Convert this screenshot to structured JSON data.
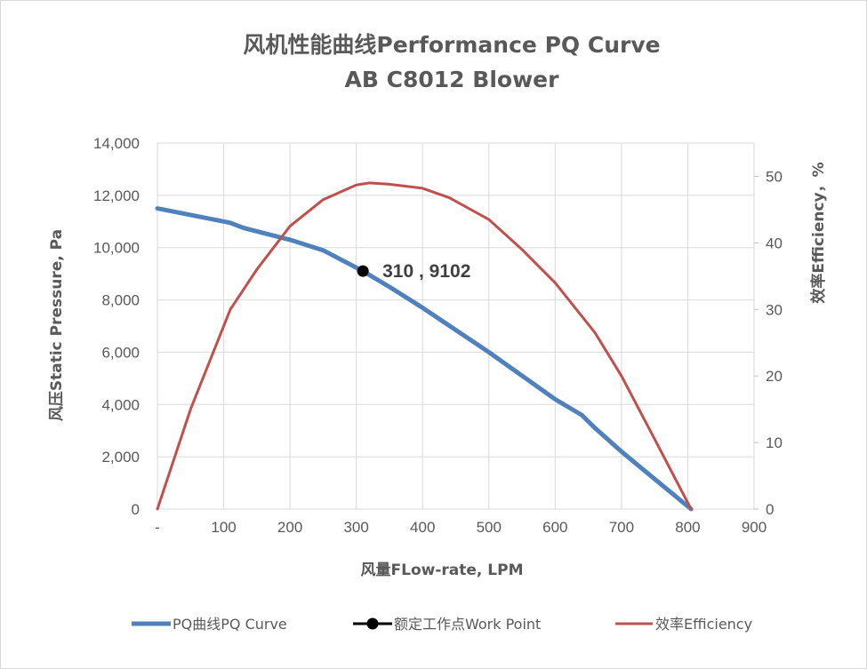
{
  "chart_data": {
    "type": "line",
    "title": "风机性能曲线Performance PQ Curve",
    "subtitle": "AB C8012 Blower",
    "xlabel": "风量FLow-rate, LPM",
    "ylabel": "风压Static Pressure, Pa",
    "y2label": "效率Efficiency，%",
    "xlim": [
      0,
      900
    ],
    "ylim": [
      0,
      14000
    ],
    "y2lim": [
      0,
      55
    ],
    "x_tick_labels": [
      "-",
      "100",
      "200",
      "300",
      "400",
      "500",
      "600",
      "700",
      "800",
      "900"
    ],
    "y_tick_labels": [
      "0",
      "2,000",
      "4,000",
      "6,000",
      "8,000",
      "10,000",
      "12,000",
      "14,000"
    ],
    "y2_tick_labels": [
      "0",
      "10",
      "20",
      "30",
      "40",
      "50"
    ],
    "grid": true,
    "legend_position": "bottom",
    "series": [
      {
        "name": "PQ曲线PQ Curve",
        "axis": "left",
        "color": "#4F81BD",
        "x": [
          0,
          50,
          110,
          130,
          200,
          250,
          310,
          350,
          400,
          450,
          500,
          550,
          600,
          640,
          660,
          700,
          750,
          805
        ],
        "y": [
          11500,
          11250,
          10950,
          10750,
          10300,
          9900,
          9102,
          8500,
          7700,
          6850,
          6000,
          5100,
          4200,
          3600,
          3100,
          2200,
          1150,
          0
        ]
      },
      {
        "name": "额定工作点Work Point",
        "axis": "left",
        "color": "#000000",
        "marker": "circle",
        "x": [
          310
        ],
        "y": [
          9102
        ]
      },
      {
        "name": "效率Efficiency",
        "axis": "right",
        "color": "#C0504D",
        "x": [
          0,
          50,
          110,
          150,
          200,
          250,
          300,
          320,
          350,
          400,
          440,
          500,
          550,
          600,
          640,
          660,
          700,
          750,
          805
        ],
        "y": [
          0,
          15,
          30,
          36,
          42.5,
          46.5,
          48.7,
          49,
          48.8,
          48.2,
          46.8,
          43.5,
          39,
          34,
          29,
          26.5,
          20,
          10.5,
          0
        ]
      }
    ],
    "annotations": [
      {
        "text": "310 , 9102",
        "x": 310,
        "y": 9102
      }
    ]
  }
}
